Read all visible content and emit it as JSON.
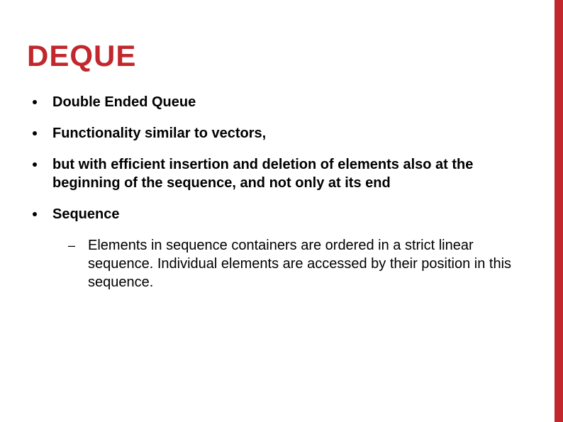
{
  "colors": {
    "accent": "#c1272d",
    "text": "#000000",
    "background": "#ffffff"
  },
  "title": "DEQUE",
  "bullets": [
    {
      "text": "Double Ended Queue"
    },
    {
      "text": "Functionality similar to vectors,"
    },
    {
      "text": "but with efficient insertion and deletion of elements also at the beginning of the sequence, and not only at its end"
    },
    {
      "text": "Sequence",
      "sub": [
        {
          "text": "Elements in sequence containers are ordered in a strict linear sequence. Individual elements are accessed by their position in this sequence."
        }
      ]
    }
  ]
}
